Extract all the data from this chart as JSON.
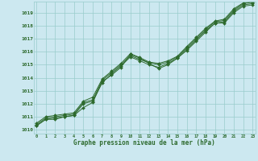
{
  "title": "Graphe pression niveau de la mer (hPa)",
  "x_labels": [
    "0",
    "1",
    "2",
    "3",
    "4",
    "5",
    "6",
    "7",
    "8",
    "9",
    "10",
    "11",
    "12",
    "13",
    "14",
    "15",
    "16",
    "17",
    "18",
    "19",
    "20",
    "21",
    "22",
    "23"
  ],
  "ylim": [
    1009.7,
    1019.85
  ],
  "yticks": [
    1010,
    1011,
    1012,
    1013,
    1014,
    1015,
    1016,
    1017,
    1018,
    1019
  ],
  "background_color": "#cce8f0",
  "grid_color": "#99cccc",
  "line_color": "#2d6a2d",
  "series": [
    [
      1010.3,
      1010.8,
      1010.8,
      1011.0,
      1011.1,
      1011.7,
      1012.1,
      1013.7,
      1014.2,
      1014.8,
      1015.8,
      1015.5,
      1015.1,
      1014.7,
      1015.0,
      1015.5,
      1016.1,
      1016.8,
      1017.5,
      1018.2,
      1018.2,
      1019.0,
      1019.5,
      1019.6
    ],
    [
      1010.3,
      1010.8,
      1010.9,
      1011.0,
      1011.1,
      1012.0,
      1012.2,
      1013.6,
      1014.3,
      1014.9,
      1015.6,
      1015.3,
      1015.0,
      1014.8,
      1015.1,
      1015.5,
      1016.2,
      1016.9,
      1017.6,
      1018.2,
      1018.3,
      1019.1,
      1019.6,
      1019.7
    ],
    [
      1010.4,
      1010.9,
      1011.0,
      1011.1,
      1011.2,
      1012.1,
      1012.3,
      1013.8,
      1014.4,
      1015.0,
      1015.7,
      1015.4,
      1015.15,
      1015.0,
      1015.2,
      1015.6,
      1016.3,
      1017.0,
      1017.7,
      1018.3,
      1018.4,
      1019.2,
      1019.7,
      1019.8
    ],
    [
      1010.5,
      1011.0,
      1011.1,
      1011.2,
      1011.3,
      1012.2,
      1012.5,
      1013.9,
      1014.5,
      1015.1,
      1015.85,
      1015.55,
      1015.2,
      1015.1,
      1015.3,
      1015.65,
      1016.4,
      1017.1,
      1017.8,
      1018.35,
      1018.5,
      1019.3,
      1019.75,
      1019.85
    ]
  ]
}
